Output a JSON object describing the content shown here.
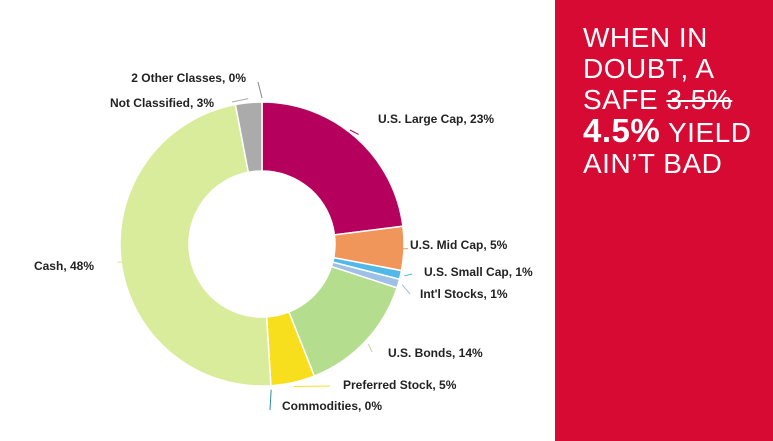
{
  "chart_data": {
    "type": "pie",
    "variant": "donut",
    "start": "top",
    "direction": "clockwise",
    "slices": [
      {
        "label": "U.S. Large Cap, 23%",
        "name": "U.S. Large Cap",
        "value": 23,
        "color": "#b5005e"
      },
      {
        "label": "U.S. Mid Cap, 5%",
        "name": "U.S. Mid Cap",
        "value": 5,
        "color": "#f0965a"
      },
      {
        "label": "U.S. Small Cap, 1%",
        "name": "U.S. Small Cap",
        "value": 1,
        "color": "#52b8e8"
      },
      {
        "label": "Int'l Stocks, 1%",
        "name": "Int'l Stocks",
        "value": 1,
        "color": "#9fc0e6"
      },
      {
        "label": "U.S. Bonds, 14%",
        "name": "U.S. Bonds",
        "value": 14,
        "color": "#b5dd8e"
      },
      {
        "label": "Preferred Stock, 5%",
        "name": "Preferred Stock",
        "value": 5,
        "color": "#f7df1e"
      },
      {
        "label": "Commodities, 0%",
        "name": "Commodities",
        "value": 0,
        "color": "#2e8fa0"
      },
      {
        "label": "Cash, 48%",
        "name": "Cash",
        "value": 48,
        "color": "#d9ec9b"
      },
      {
        "label": "Not Classified, 3%",
        "name": "Not Classified",
        "value": 3,
        "color": "#ababab"
      },
      {
        "label": "2 Other Classes, 0%",
        "name": "2 Other Classes",
        "value": 0,
        "color": "#8a8a8a"
      }
    ]
  },
  "panel": {
    "background": "#d60a32",
    "line1": "WHEN IN",
    "line2": "DOUBT, A",
    "line3_prefix": "SAFE ",
    "line3_strike": "3.5%",
    "line4_bold": "4.5%",
    "line4_rest": " YIELD",
    "line5": "AIN’T  BAD"
  }
}
